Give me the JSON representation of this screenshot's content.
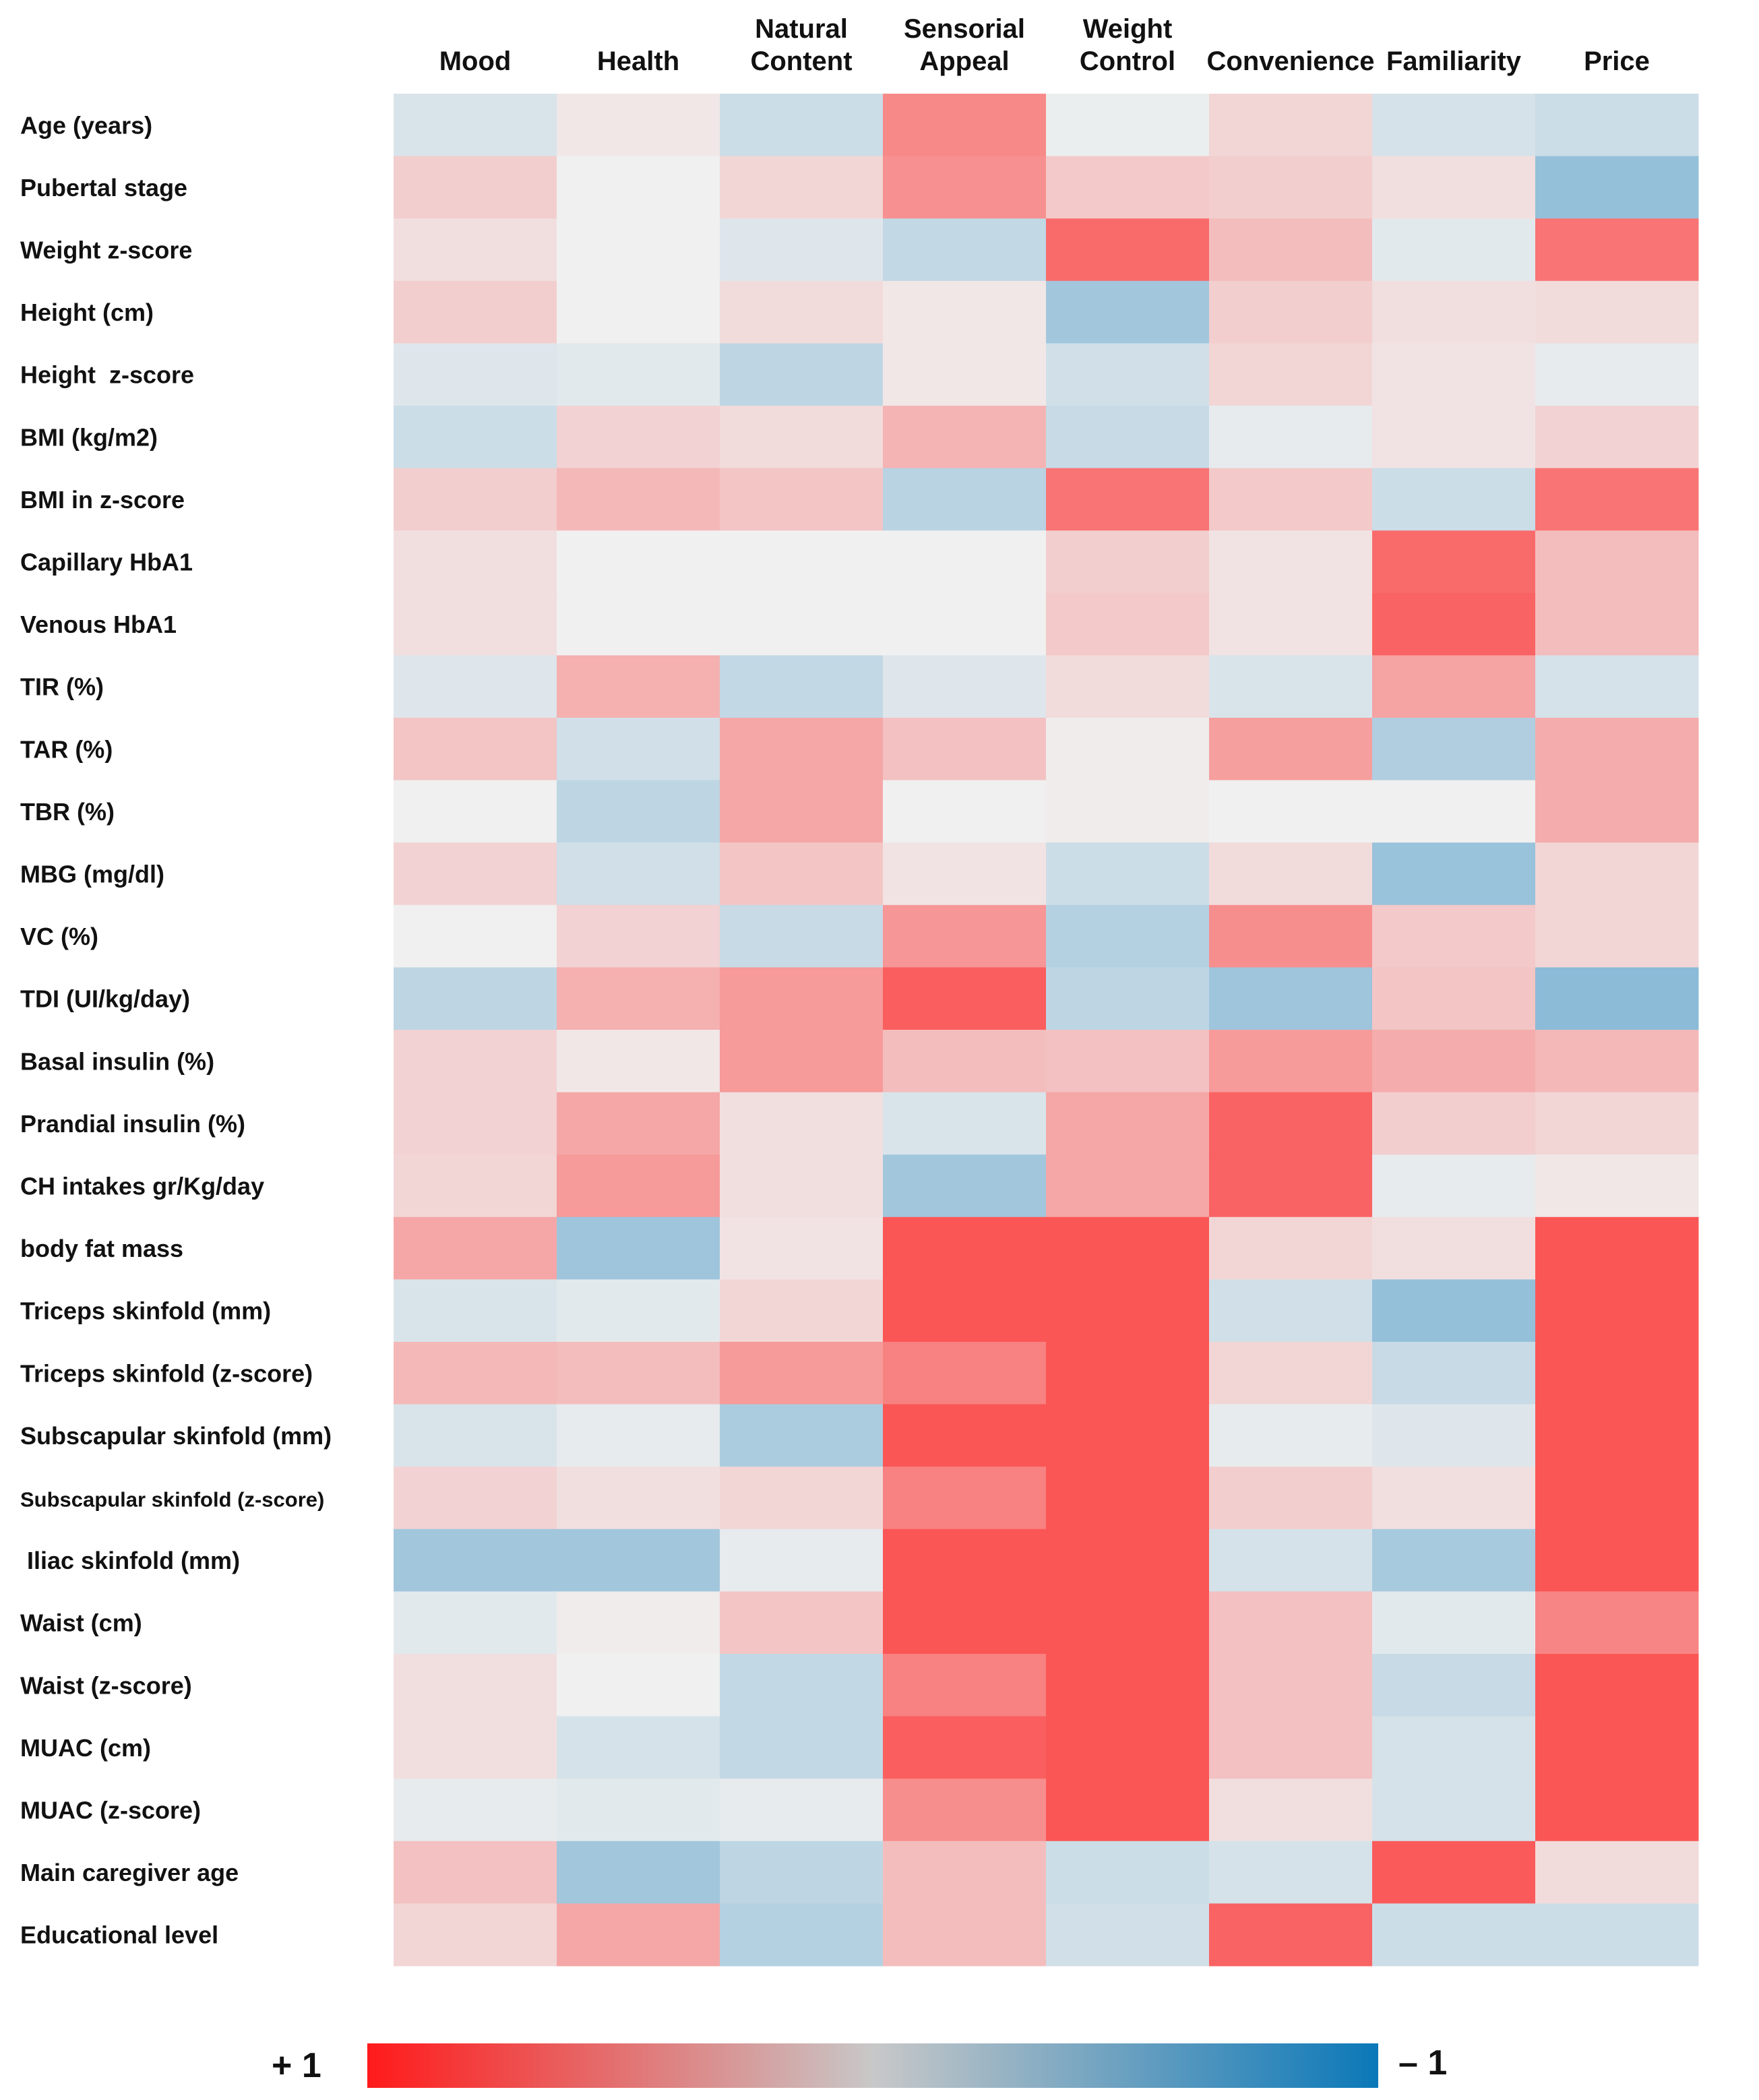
{
  "chart_data": {
    "type": "heatmap",
    "title": "",
    "columns": [
      [
        "Mood"
      ],
      [
        "Health"
      ],
      [
        "Natural",
        "Content"
      ],
      [
        "Sensorial",
        "Appeal"
      ],
      [
        "Weight",
        "Control"
      ],
      [
        "Convenience"
      ],
      [
        "Familiarity"
      ],
      [
        "Price"
      ]
    ],
    "rows": [
      "Age (years)",
      "Pubertal stage",
      "Weight z-score",
      "Height (cm)",
      "Height  z-score",
      "BMI (kg/m2)",
      "BMI in z-score",
      "Capillary HbA1",
      "Venous HbA1",
      "TIR (%)",
      "TAR (%)",
      "TBR (%)",
      "MBG (mg/dl)",
      "VC (%)",
      "TDI (UI/kg/day)",
      "Basal insulin (%)",
      "Prandial insulin (%)",
      "CH intakes gr/Kg/day",
      "body fat mass",
      "Triceps skinfold (mm)",
      "Triceps skinfold (z-score)",
      "Subscapular skinfold (mm)",
      "Subscapular skinfold (z-score)",
      " Iliac skinfold (mm)",
      "Waist (cm)",
      "Waist (z-score)",
      "MUAC (cm)",
      "MUAC (z-score)",
      "Main caregiver age",
      "Educational level"
    ],
    "values": [
      [
        -0.1,
        0.04,
        -0.16,
        0.48,
        -0.02,
        0.12,
        -0.12,
        -0.16
      ],
      [
        0.16,
        0.0,
        0.12,
        0.45,
        0.18,
        0.16,
        0.08,
        -0.4
      ],
      [
        0.08,
        0.0,
        -0.08,
        -0.2,
        0.62,
        0.24,
        -0.06,
        0.58
      ],
      [
        0.16,
        0.0,
        0.1,
        0.04,
        -0.34,
        0.16,
        0.08,
        0.1
      ],
      [
        -0.08,
        -0.06,
        -0.22,
        0.04,
        -0.14,
        0.12,
        0.06,
        -0.04
      ],
      [
        -0.16,
        0.14,
        0.1,
        0.28,
        -0.18,
        -0.04,
        0.06,
        0.14
      ],
      [
        0.16,
        0.26,
        0.2,
        -0.24,
        0.58,
        0.18,
        -0.16,
        0.58
      ],
      [
        0.08,
        0.0,
        0.0,
        0.0,
        0.16,
        0.06,
        0.62,
        0.24
      ],
      [
        0.08,
        0.0,
        0.0,
        0.0,
        0.18,
        0.06,
        0.66,
        0.24
      ],
      [
        -0.08,
        0.3,
        -0.2,
        -0.08,
        0.1,
        -0.1,
        0.36,
        -0.12
      ],
      [
        0.2,
        -0.14,
        0.34,
        0.22,
        0.02,
        0.38,
        -0.28,
        0.32
      ],
      [
        0.0,
        -0.22,
        0.34,
        0.0,
        0.02,
        0.0,
        0.0,
        0.32
      ],
      [
        0.14,
        -0.14,
        0.2,
        0.06,
        -0.16,
        0.1,
        -0.38,
        0.12
      ],
      [
        0.0,
        0.14,
        -0.18,
        0.42,
        -0.26,
        0.46,
        0.18,
        0.12
      ],
      [
        -0.22,
        0.3,
        0.4,
        0.68,
        -0.22,
        -0.36,
        0.2,
        -0.44
      ],
      [
        0.14,
        0.04,
        0.4,
        0.24,
        0.22,
        0.4,
        0.32,
        0.26
      ],
      [
        0.14,
        0.34,
        0.08,
        -0.1,
        0.34,
        0.66,
        0.16,
        0.12
      ],
      [
        0.12,
        0.4,
        0.08,
        -0.34,
        0.34,
        0.66,
        -0.04,
        0.04
      ],
      [
        0.34,
        -0.36,
        0.06,
        0.72,
        0.72,
        0.12,
        0.08,
        0.72
      ],
      [
        -0.1,
        -0.06,
        0.12,
        0.72,
        0.72,
        -0.14,
        -0.4,
        0.72
      ],
      [
        0.26,
        0.24,
        0.4,
        0.52,
        0.72,
        0.12,
        -0.18,
        0.72
      ],
      [
        -0.1,
        -0.04,
        -0.3,
        0.72,
        0.72,
        -0.04,
        -0.08,
        0.72
      ],
      [
        0.14,
        0.08,
        0.12,
        0.52,
        0.72,
        0.16,
        0.08,
        0.72
      ],
      [
        -0.34,
        -0.34,
        -0.04,
        0.72,
        0.72,
        -0.12,
        -0.32,
        0.72
      ],
      [
        -0.06,
        0.02,
        0.2,
        0.72,
        0.72,
        0.22,
        -0.06,
        0.5
      ],
      [
        0.08,
        0.0,
        -0.2,
        0.52,
        0.72,
        0.22,
        -0.18,
        0.72
      ],
      [
        0.08,
        -0.12,
        -0.2,
        0.68,
        0.72,
        0.22,
        -0.12,
        0.72
      ],
      [
        -0.04,
        -0.06,
        -0.04,
        0.46,
        0.72,
        0.08,
        -0.12,
        0.72
      ],
      [
        0.22,
        -0.34,
        -0.22,
        0.24,
        -0.16,
        -0.12,
        0.7,
        0.1
      ],
      [
        0.12,
        0.34,
        -0.26,
        0.24,
        -0.14,
        0.66,
        -0.16,
        -0.16
      ]
    ],
    "color_scale": {
      "min": -1,
      "max": 1,
      "min_label": "– 1",
      "max_label": "+ 1",
      "positive_color": "#ff1a1a",
      "neutral_color": "#f0f0f0",
      "negative_color": "#0b78b8"
    }
  }
}
